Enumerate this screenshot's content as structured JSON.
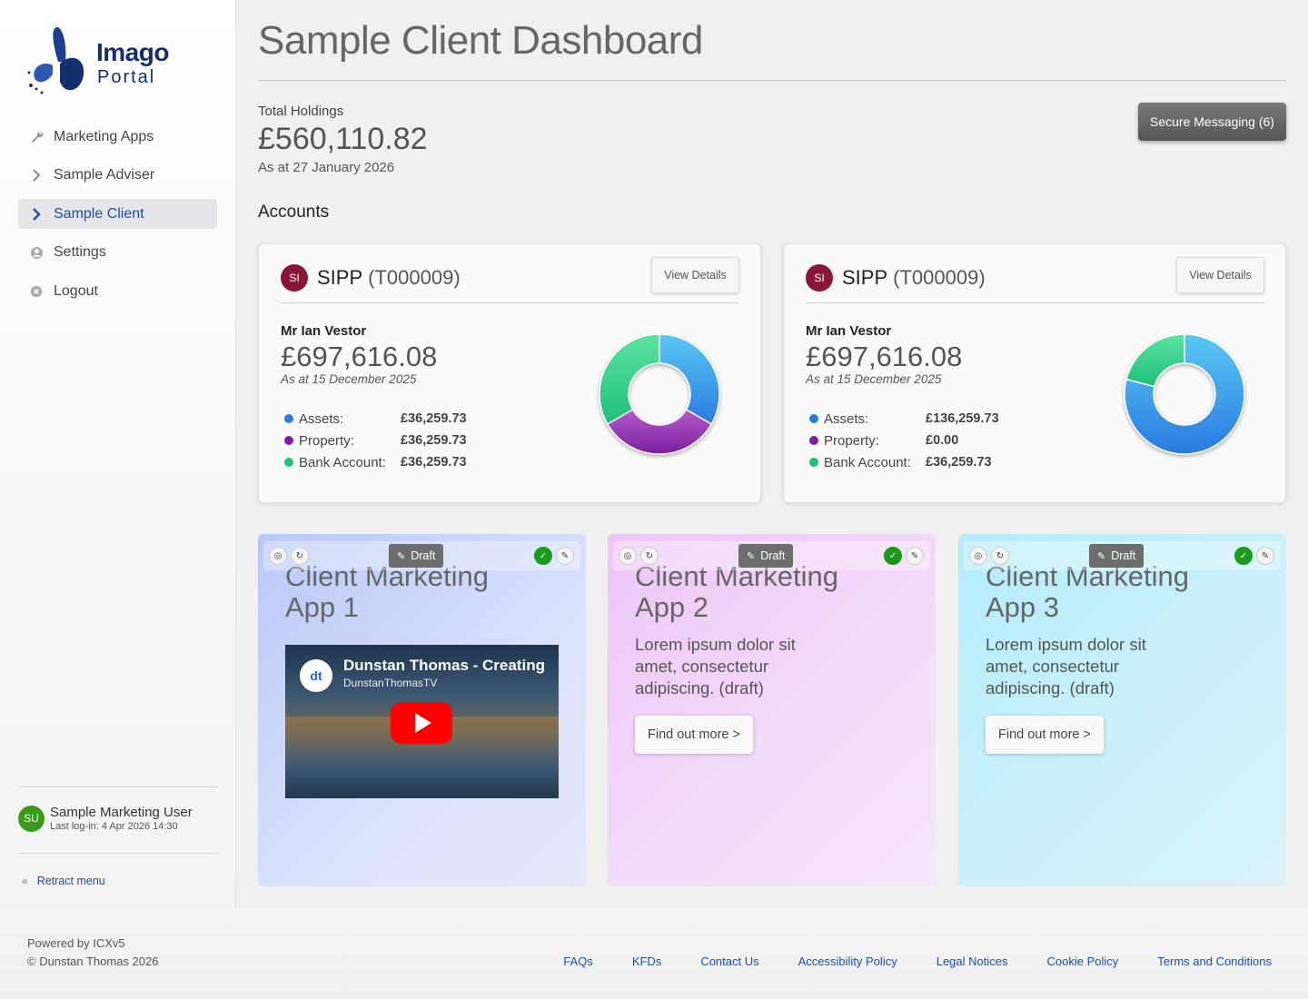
{
  "brand": {
    "line1": "Imago",
    "line2": "Portal"
  },
  "nav": [
    {
      "label": "Marketing Apps",
      "icon": "wrench-icon"
    },
    {
      "label": "Sample Adviser",
      "icon": "chevron-right-icon"
    },
    {
      "label": "Sample Client",
      "icon": "chevron-right-icon",
      "active": true
    },
    {
      "label": "Settings",
      "icon": "user-circle-icon"
    },
    {
      "label": "Logout",
      "icon": "close-circle-icon"
    }
  ],
  "user": {
    "initials": "SU",
    "name": "Sample Marketing User",
    "last_login": "Last log-in: 4 Apr 2026 14:30",
    "avatar_color": "#3a9b1b"
  },
  "retract_label": "Retract menu",
  "page": {
    "title": "Sample Client Dashboard",
    "total_label": "Total Holdings",
    "total_value": "£560,110.82",
    "total_date": "As at 27 January 2026",
    "messaging_label": "Secure Messaging (6)",
    "accounts_title": "Accounts"
  },
  "accounts": [
    {
      "badge": "SI",
      "name": "SIPP",
      "id": "(T000009)",
      "view_label": "View Details",
      "holder": "Mr Ian Vestor",
      "value": "£697,616.08",
      "date": "As at 15 December 2025",
      "legend": [
        {
          "label": "Assets:",
          "value": "£36,259.73",
          "color": "#2a7be0"
        },
        {
          "label": "Property:",
          "value": "£36,259.73",
          "color": "#7b1fa2"
        },
        {
          "label": "Bank Account:",
          "value": "£36,259.73",
          "color": "#20c07a"
        }
      ],
      "chart": [
        36259.73,
        36259.73,
        36259.73
      ]
    },
    {
      "badge": "SI",
      "name": "SIPP",
      "id": "(T000009)",
      "view_label": "View Details",
      "holder": "Mr Ian Vestor",
      "value": "£697,616.08",
      "date": "As at 15 December 2025",
      "legend": [
        {
          "label": "Assets:",
          "value": "£136,259.73",
          "color": "#2a7be0"
        },
        {
          "label": "Property:",
          "value": "£0.00",
          "color": "#7b1fa2"
        },
        {
          "label": "Bank Account:",
          "value": "£36,259.73",
          "color": "#20c07a"
        }
      ],
      "chart": [
        136259.73,
        0,
        36259.73
      ]
    }
  ],
  "marketing": [
    {
      "title": "Client Marketing App 1",
      "draft": "Draft",
      "type": "video",
      "video_title": "Dunstan Thomas - Creating",
      "video_channel": "DunstanThomasTV"
    },
    {
      "title": "Client Marketing App 2",
      "draft": "Draft",
      "type": "text",
      "body": "Lorem ipsum dolor sit amet, consectetur adipiscing. (draft)",
      "button": "Find out more >"
    },
    {
      "title": "Client Marketing App 3",
      "draft": "Draft",
      "type": "text",
      "body": "Lorem ipsum dolor sit amet, consectetur adipiscing. (draft)",
      "button": "Find out more >"
    }
  ],
  "footer": {
    "powered": "Powered by ICXv5",
    "copyright": "© Dunstan Thomas 2026",
    "links": [
      "FAQs",
      "KFDs",
      "Contact Us",
      "Accessibility Policy",
      "Legal Notices",
      "Cookie Policy",
      "Terms and Conditions"
    ]
  }
}
